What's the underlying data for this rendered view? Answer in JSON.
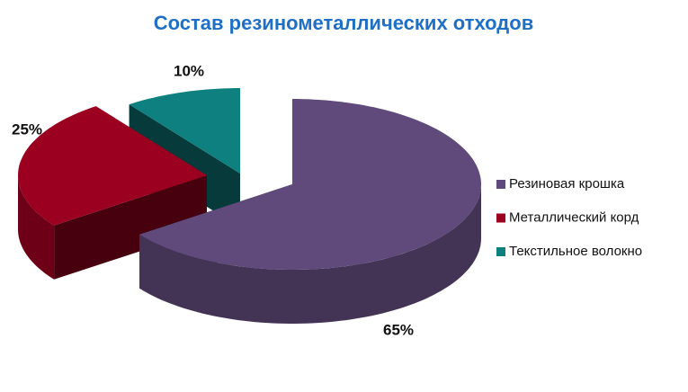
{
  "chart_data": {
    "type": "pie3d",
    "title": "Состав резинометаллических отходов",
    "categories": [
      "Резиновая крошка",
      "Металлический корд",
      "Текстильное волокно"
    ],
    "values": [
      65,
      25,
      10
    ],
    "value_labels": [
      "65%",
      "25%",
      "10%"
    ],
    "colors": [
      "#5f4a7b",
      "#9c0020",
      "#0f8080"
    ],
    "legend": "right"
  }
}
